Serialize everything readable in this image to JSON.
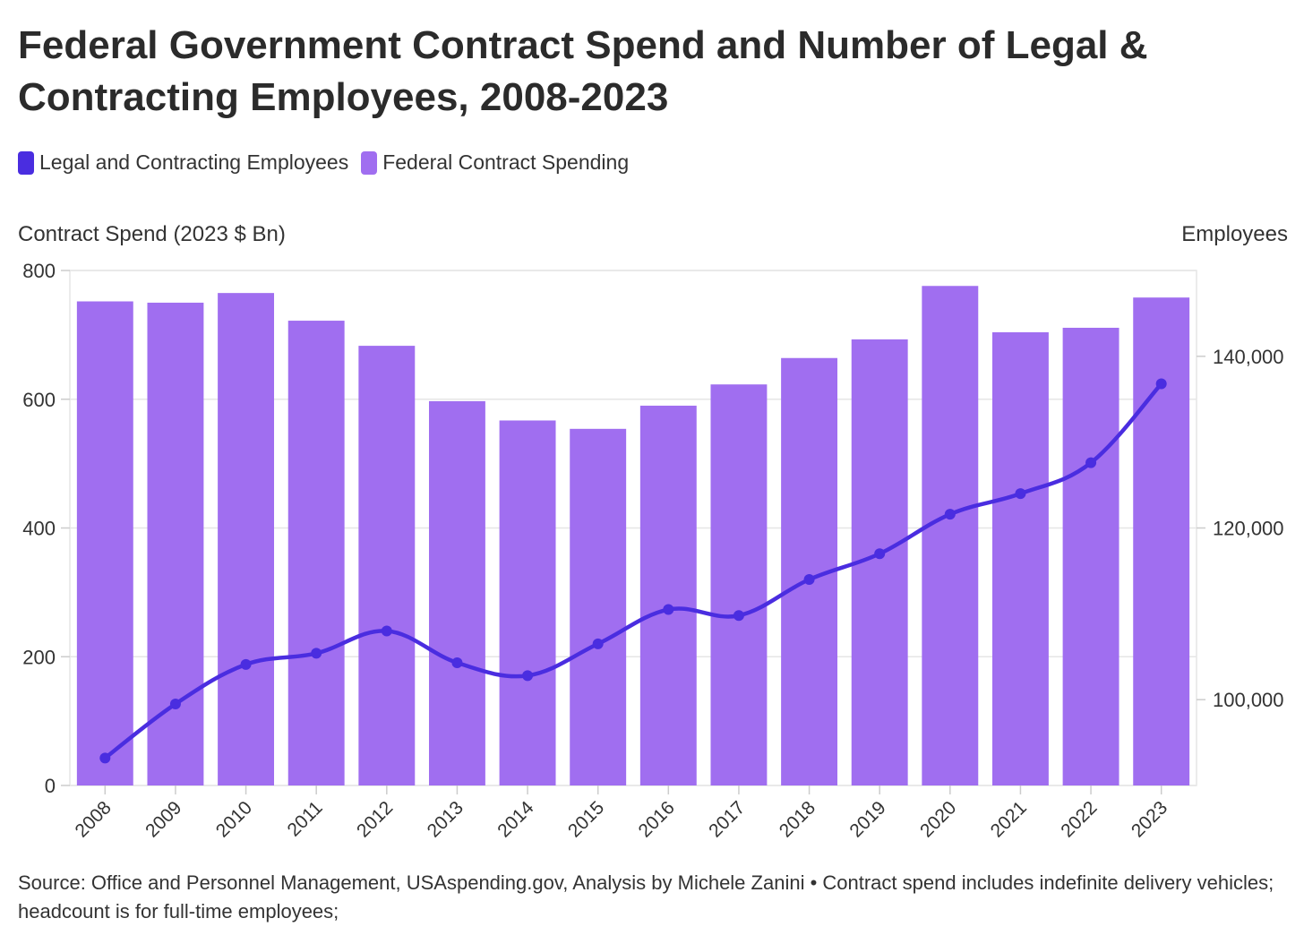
{
  "title": "Federal Government Contract Spend and Number of Legal & Contracting Employees, 2008-2023",
  "legend": [
    {
      "label": "Legal and Contracting Employees",
      "color": "#4a2de0"
    },
    {
      "label": "Federal Contract Spending",
      "color": "#a06ef0"
    }
  ],
  "footer": "Source: Office and Personnel Management, USAspending.gov, Analysis by Michele Zanini • Contract spend includes indefinite delivery vehicles; headcount is for full-time employees;",
  "chart_data": {
    "type": "bar",
    "categories": [
      "2008",
      "2009",
      "2010",
      "2011",
      "2012",
      "2013",
      "2014",
      "2015",
      "2016",
      "2017",
      "2018",
      "2019",
      "2020",
      "2021",
      "2022",
      "2023"
    ],
    "ylabel": "Contract Spend (2023 $ Bn)",
    "y2label": "Employees",
    "ylim": [
      0,
      800
    ],
    "y2lim": [
      90000,
      150000
    ],
    "yticks": [
      "0",
      "200",
      "400",
      "600",
      "800"
    ],
    "y2ticks": [
      "100,000",
      "120,000",
      "140,000"
    ],
    "grid": true,
    "legend_position": "top-left",
    "series": [
      {
        "name": "Federal Contract Spending",
        "type": "bar",
        "axis": "left",
        "color": "#a06ef0",
        "values": [
          752,
          750,
          765,
          722,
          683,
          597,
          567,
          554,
          590,
          623,
          664,
          693,
          776,
          704,
          711,
          758
        ]
      },
      {
        "name": "Legal and Contracting Employees",
        "type": "line",
        "axis": "right",
        "color": "#4a2de0",
        "values": [
          93200,
          99500,
          104100,
          105400,
          108000,
          104300,
          102800,
          106500,
          110500,
          109800,
          114000,
          117000,
          121600,
          124000,
          127600,
          136800
        ]
      }
    ]
  }
}
